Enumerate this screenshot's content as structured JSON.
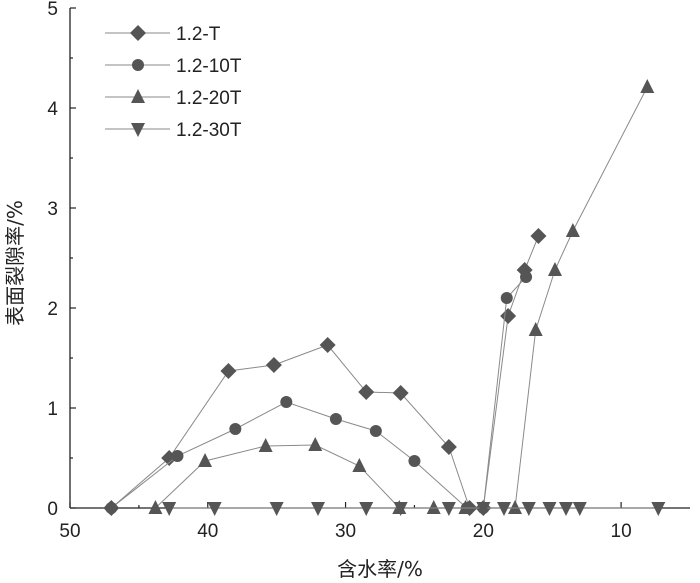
{
  "chart_data": {
    "type": "line",
    "xlabel": "含水率/%",
    "ylabel": "表面裂隙率/%",
    "xlim": [
      50,
      5
    ],
    "ylim": [
      0,
      5
    ],
    "x_ticks": [
      "50",
      "40",
      "30",
      "20",
      "10"
    ],
    "y_ticks": [
      "0",
      "1",
      "2",
      "3",
      "4",
      "5"
    ],
    "grid": false,
    "legend_position": "top-left",
    "series": [
      {
        "name": "1.2-T",
        "marker": "diamond",
        "x": [
          47,
          42.8,
          38.5,
          35.2,
          31.3,
          28.5,
          26.0,
          22.5,
          21.0,
          20.0,
          18.2,
          17.0,
          16.0
        ],
        "y": [
          0,
          0.5,
          1.37,
          1.43,
          1.63,
          1.16,
          1.15,
          0.61,
          0,
          0,
          1.92,
          2.38,
          2.72
        ]
      },
      {
        "name": "1.2-10T",
        "marker": "circle",
        "x": [
          47,
          42.2,
          38.0,
          34.3,
          30.7,
          27.8,
          25.0,
          21.2,
          20.0,
          18.3,
          16.9
        ],
        "y": [
          0,
          0.52,
          0.79,
          1.06,
          0.89,
          0.77,
          0.47,
          0,
          0,
          2.1,
          2.31
        ]
      },
      {
        "name": "1.2-20T",
        "marker": "triangle-up",
        "x": [
          43.8,
          40.2,
          35.8,
          32.2,
          29.0,
          26.1,
          23.6,
          21.3,
          17.7,
          16.2,
          14.8,
          13.5,
          8.1
        ],
        "y": [
          0,
          0.47,
          0.62,
          0.63,
          0.42,
          0,
          0,
          0,
          0,
          1.78,
          2.38,
          2.77,
          4.21
        ]
      },
      {
        "name": "1.2-30T",
        "marker": "triangle-down",
        "x": [
          42.8,
          39.5,
          35.0,
          32.0,
          28.5,
          26.0,
          22.5,
          20.0,
          18.5,
          16.7,
          15.2,
          14.0,
          13.0,
          7.3
        ],
        "y": [
          0,
          0,
          0,
          0,
          0,
          0,
          0,
          0,
          0,
          0,
          0,
          0,
          0,
          0
        ]
      }
    ]
  }
}
